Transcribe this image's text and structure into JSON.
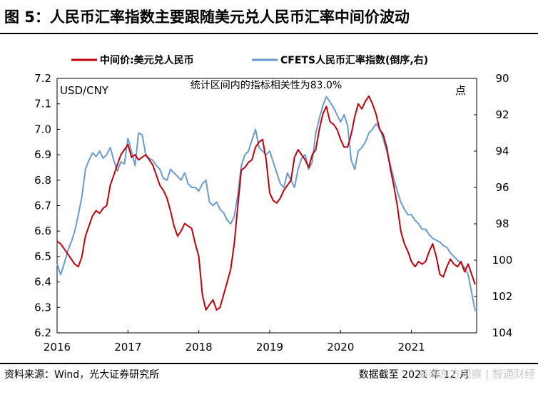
{
  "title": "图 5：人民币汇率指数主要跟随美元兑人民币汇率中间价波动",
  "source": "资料来源：Wind，光大证券研究所",
  "date_note": "数据截至 2021 年 12 月",
  "watermark": "高端东方观察 | 智通财经",
  "colors": {
    "red": "#c0000b",
    "blue": "#6a9bd0"
  },
  "chart_data": {
    "type": "line",
    "annotation": "统计区间内的指标相关性为83.0%",
    "left_axis_label": "USD/CNY",
    "right_axis_label": "点",
    "left_ylim": [
      6.2,
      7.2
    ],
    "left_ticks": [
      "6.2",
      "6.3",
      "6.4",
      "6.5",
      "6.6",
      "6.7",
      "6.8",
      "6.9",
      "7.0",
      "7.1",
      "7.2"
    ],
    "right_ylim": [
      90,
      104
    ],
    "right_inverted": true,
    "right_ticks": [
      "90",
      "92",
      "94",
      "96",
      "98",
      "100",
      "102",
      "104"
    ],
    "x_range": [
      2016.0,
      2021.92
    ],
    "x_ticks": [
      "2016",
      "2017",
      "2018",
      "2019",
      "2020",
      "2021"
    ],
    "legend_position": "top",
    "series": [
      {
        "name": "中间价:美元兑人民币",
        "axis": "left",
        "color": "#c0000b",
        "x": [
          2016.0,
          2016.05,
          2016.1,
          2016.15,
          2016.2,
          2016.25,
          2016.3,
          2016.35,
          2016.4,
          2016.45,
          2016.5,
          2016.55,
          2016.6,
          2016.65,
          2016.7,
          2016.75,
          2016.8,
          2016.85,
          2016.9,
          2016.95,
          2017.0,
          2017.05,
          2017.1,
          2017.15,
          2017.2,
          2017.25,
          2017.3,
          2017.35,
          2017.4,
          2017.45,
          2017.5,
          2017.55,
          2017.6,
          2017.65,
          2017.7,
          2017.75,
          2017.8,
          2017.85,
          2017.9,
          2017.95,
          2018.0,
          2018.05,
          2018.1,
          2018.15,
          2018.2,
          2018.25,
          2018.3,
          2018.35,
          2018.4,
          2018.45,
          2018.5,
          2018.55,
          2018.6,
          2018.65,
          2018.7,
          2018.75,
          2018.8,
          2018.85,
          2018.9,
          2018.95,
          2019.0,
          2019.05,
          2019.1,
          2019.15,
          2019.2,
          2019.25,
          2019.3,
          2019.35,
          2019.4,
          2019.45,
          2019.5,
          2019.55,
          2019.6,
          2019.65,
          2019.7,
          2019.75,
          2019.8,
          2019.85,
          2019.9,
          2019.95,
          2020.0,
          2020.05,
          2020.1,
          2020.15,
          2020.2,
          2020.25,
          2020.3,
          2020.35,
          2020.4,
          2020.45,
          2020.5,
          2020.55,
          2020.6,
          2020.65,
          2020.7,
          2020.75,
          2020.8,
          2020.85,
          2020.9,
          2020.95,
          2021.0,
          2021.05,
          2021.1,
          2021.15,
          2021.2,
          2021.25,
          2021.3,
          2021.35,
          2021.4,
          2021.45,
          2021.5,
          2021.55,
          2021.6,
          2021.65,
          2021.7,
          2021.75,
          2021.8,
          2021.85,
          2021.9
        ],
        "values": [
          6.56,
          6.55,
          6.53,
          6.51,
          6.49,
          6.47,
          6.46,
          6.5,
          6.58,
          6.62,
          6.66,
          6.68,
          6.67,
          6.69,
          6.7,
          6.78,
          6.82,
          6.86,
          6.9,
          6.92,
          6.94,
          6.89,
          6.9,
          6.88,
          6.89,
          6.9,
          6.88,
          6.86,
          6.82,
          6.78,
          6.76,
          6.73,
          6.68,
          6.62,
          6.58,
          6.6,
          6.63,
          6.62,
          6.61,
          6.55,
          6.5,
          6.35,
          6.29,
          6.31,
          6.33,
          6.29,
          6.3,
          6.35,
          6.4,
          6.45,
          6.55,
          6.7,
          6.84,
          6.85,
          6.87,
          6.88,
          6.93,
          6.95,
          6.96,
          6.88,
          6.75,
          6.72,
          6.71,
          6.73,
          6.76,
          6.78,
          6.8,
          6.89,
          6.92,
          6.9,
          6.88,
          6.85,
          6.9,
          6.92,
          7.0,
          7.06,
          7.09,
          7.03,
          7.02,
          7.0,
          6.96,
          6.93,
          6.93,
          6.98,
          7.05,
          7.1,
          7.08,
          7.11,
          7.13,
          7.1,
          7.06,
          7.0,
          6.98,
          6.93,
          6.85,
          6.78,
          6.7,
          6.6,
          6.55,
          6.52,
          6.48,
          6.46,
          6.48,
          6.47,
          6.48,
          6.52,
          6.55,
          6.5,
          6.43,
          6.42,
          6.46,
          6.49,
          6.47,
          6.46,
          6.48,
          6.44,
          6.47,
          6.43,
          6.39
        ]
      },
      {
        "name": "CFETS人民币汇率指数(倒序,右)",
        "axis": "right",
        "color": "#6a9bd0",
        "x": [
          2016.0,
          2016.05,
          2016.1,
          2016.15,
          2016.2,
          2016.25,
          2016.3,
          2016.35,
          2016.4,
          2016.45,
          2016.5,
          2016.55,
          2016.6,
          2016.65,
          2016.7,
          2016.75,
          2016.8,
          2016.85,
          2016.9,
          2016.95,
          2017.0,
          2017.05,
          2017.1,
          2017.15,
          2017.2,
          2017.25,
          2017.3,
          2017.35,
          2017.4,
          2017.45,
          2017.5,
          2017.55,
          2017.6,
          2017.65,
          2017.7,
          2017.75,
          2017.8,
          2017.85,
          2017.9,
          2017.95,
          2018.0,
          2018.05,
          2018.1,
          2018.15,
          2018.2,
          2018.25,
          2018.3,
          2018.35,
          2018.4,
          2018.45,
          2018.5,
          2018.55,
          2018.6,
          2018.65,
          2018.7,
          2018.75,
          2018.8,
          2018.85,
          2018.9,
          2018.95,
          2019.0,
          2019.05,
          2019.1,
          2019.15,
          2019.2,
          2019.25,
          2019.3,
          2019.35,
          2019.4,
          2019.45,
          2019.5,
          2019.55,
          2019.6,
          2019.65,
          2019.7,
          2019.75,
          2019.8,
          2019.85,
          2019.9,
          2019.95,
          2020.0,
          2020.05,
          2020.1,
          2020.15,
          2020.2,
          2020.25,
          2020.3,
          2020.35,
          2020.4,
          2020.45,
          2020.5,
          2020.55,
          2020.6,
          2020.65,
          2020.7,
          2020.75,
          2020.8,
          2020.85,
          2020.9,
          2020.95,
          2021.0,
          2021.05,
          2021.1,
          2021.15,
          2021.2,
          2021.25,
          2021.3,
          2021.35,
          2021.4,
          2021.45,
          2021.5,
          2021.55,
          2021.6,
          2021.65,
          2021.7,
          2021.75,
          2021.8,
          2021.85,
          2021.9
        ],
        "values": [
          100.2,
          100.8,
          100.2,
          99.5,
          99.0,
          98.4,
          97.5,
          96.5,
          95.0,
          94.5,
          94.1,
          94.3,
          94.0,
          94.4,
          94.2,
          93.8,
          94.5,
          95.1,
          94.6,
          94.7,
          93.3,
          94.0,
          94.8,
          93.0,
          93.1,
          94.2,
          94.4,
          94.5,
          94.8,
          95.0,
          95.5,
          95.6,
          95.0,
          95.2,
          95.4,
          95.6,
          95.2,
          95.8,
          96.0,
          96.0,
          96.2,
          95.8,
          95.6,
          96.8,
          97.0,
          96.8,
          97.2,
          97.4,
          97.8,
          98.0,
          97.6,
          96.4,
          94.8,
          94.2,
          94.0,
          93.4,
          92.8,
          93.8,
          94.0,
          94.2,
          94.0,
          94.6,
          95.2,
          95.8,
          96.0,
          95.2,
          95.6,
          96.0,
          95.0,
          94.4,
          94.2,
          95.0,
          94.6,
          93.0,
          92.2,
          91.5,
          91.0,
          91.3,
          91.6,
          92.0,
          92.4,
          92.0,
          92.6,
          94.5,
          95.0,
          94.0,
          93.8,
          93.5,
          93.0,
          92.8,
          92.5,
          92.7,
          93.3,
          94.0,
          94.7,
          95.5,
          96.2,
          96.8,
          97.2,
          97.5,
          97.5,
          97.8,
          98.0,
          98.3,
          98.3,
          98.6,
          98.8,
          98.9,
          99.0,
          99.2,
          99.3,
          99.6,
          99.8,
          100.0,
          100.2,
          100.4,
          100.8,
          101.8,
          102.8
        ]
      }
    ]
  }
}
